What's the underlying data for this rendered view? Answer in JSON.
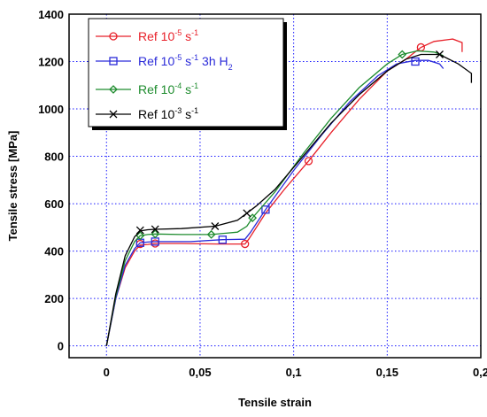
{
  "chart_data": {
    "type": "line",
    "xlabel": "Tensile strain",
    "ylabel": "Tensile stress [MPa]",
    "xlim": [
      -0.02,
      0.2
    ],
    "ylim": [
      -50,
      1400
    ],
    "xticks": [
      0,
      0.05,
      0.1,
      0.15,
      0.2
    ],
    "xtick_labels": [
      "0",
      "0,05",
      "0,1",
      "0,15",
      "0,2"
    ],
    "yticks": [
      0,
      200,
      400,
      600,
      800,
      1000,
      1200,
      1400
    ],
    "ytick_labels": [
      "0",
      "200",
      "400",
      "600",
      "800",
      "1000",
      "1200",
      "1400"
    ],
    "grid": true,
    "legend_position": "top-left",
    "series": [
      {
        "legend_parts": [
          "Ref 10",
          "-5",
          " s",
          "-1",
          "",
          ""
        ],
        "color": "#e8212a",
        "marker": "circle",
        "points": [
          [
            0,
            0
          ],
          [
            0.005,
            200
          ],
          [
            0.01,
            330
          ],
          [
            0.015,
            400
          ],
          [
            0.018,
            425
          ],
          [
            0.022,
            428
          ],
          [
            0.026,
            432
          ],
          [
            0.04,
            432
          ],
          [
            0.06,
            430
          ],
          [
            0.074,
            430
          ],
          [
            0.076,
            450
          ],
          [
            0.085,
            560
          ],
          [
            0.095,
            660
          ],
          [
            0.108,
            780
          ],
          [
            0.12,
            900
          ],
          [
            0.135,
            1040
          ],
          [
            0.15,
            1160
          ],
          [
            0.16,
            1210
          ],
          [
            0.168,
            1260
          ],
          [
            0.175,
            1285
          ],
          [
            0.185,
            1295
          ],
          [
            0.19,
            1280
          ],
          [
            0.19,
            1240
          ]
        ],
        "markers_at": [
          [
            0.018,
            430
          ],
          [
            0.026,
            432
          ],
          [
            0.074,
            430
          ],
          [
            0.108,
            780
          ],
          [
            0.168,
            1260
          ]
        ]
      },
      {
        "legend_parts": [
          "Ref 10",
          "-5",
          " s",
          "-1",
          " 3h H",
          "2"
        ],
        "color": "#2b2bd9",
        "marker": "square",
        "points": [
          [
            0,
            0
          ],
          [
            0.005,
            200
          ],
          [
            0.01,
            340
          ],
          [
            0.015,
            410
          ],
          [
            0.018,
            435
          ],
          [
            0.022,
            438
          ],
          [
            0.026,
            440
          ],
          [
            0.045,
            440
          ],
          [
            0.062,
            448
          ],
          [
            0.074,
            450
          ],
          [
            0.077,
            480
          ],
          [
            0.085,
            575
          ],
          [
            0.1,
            740
          ],
          [
            0.115,
            890
          ],
          [
            0.13,
            1030
          ],
          [
            0.145,
            1140
          ],
          [
            0.155,
            1190
          ],
          [
            0.165,
            1205
          ],
          [
            0.172,
            1205
          ],
          [
            0.178,
            1190
          ],
          [
            0.18,
            1170
          ]
        ],
        "markers_at": [
          [
            0.018,
            435
          ],
          [
            0.026,
            440
          ],
          [
            0.062,
            448
          ],
          [
            0.085,
            575
          ],
          [
            0.165,
            1200
          ]
        ]
      },
      {
        "legend_parts": [
          "Ref 10",
          "-4",
          " s",
          "-1",
          "",
          ""
        ],
        "color": "#1e8c2e",
        "marker": "diamond",
        "points": [
          [
            0,
            0
          ],
          [
            0.005,
            210
          ],
          [
            0.01,
            360
          ],
          [
            0.015,
            440
          ],
          [
            0.018,
            465
          ],
          [
            0.022,
            470
          ],
          [
            0.026,
            472
          ],
          [
            0.04,
            470
          ],
          [
            0.056,
            470
          ],
          [
            0.07,
            480
          ],
          [
            0.075,
            505
          ],
          [
            0.078,
            540
          ],
          [
            0.09,
            650
          ],
          [
            0.105,
            810
          ],
          [
            0.12,
            960
          ],
          [
            0.135,
            1090
          ],
          [
            0.15,
            1190
          ],
          [
            0.158,
            1230
          ],
          [
            0.166,
            1245
          ],
          [
            0.175,
            1240
          ],
          [
            0.18,
            1225
          ]
        ],
        "markers_at": [
          [
            0.018,
            465
          ],
          [
            0.026,
            472
          ],
          [
            0.056,
            470
          ],
          [
            0.078,
            540
          ],
          [
            0.158,
            1230
          ]
        ]
      },
      {
        "legend_parts": [
          "Ref 10",
          "-3",
          " s",
          "-1",
          "",
          ""
        ],
        "color": "#000000",
        "marker": "x",
        "points": [
          [
            0,
            0
          ],
          [
            0.005,
            220
          ],
          [
            0.01,
            380
          ],
          [
            0.015,
            460
          ],
          [
            0.018,
            485
          ],
          [
            0.022,
            490
          ],
          [
            0.026,
            492
          ],
          [
            0.04,
            495
          ],
          [
            0.058,
            505
          ],
          [
            0.07,
            530
          ],
          [
            0.075,
            560
          ],
          [
            0.08,
            590
          ],
          [
            0.09,
            660
          ],
          [
            0.105,
            800
          ],
          [
            0.12,
            940
          ],
          [
            0.135,
            1060
          ],
          [
            0.15,
            1160
          ],
          [
            0.16,
            1210
          ],
          [
            0.168,
            1230
          ],
          [
            0.178,
            1230
          ],
          [
            0.188,
            1190
          ],
          [
            0.195,
            1150
          ],
          [
            0.195,
            1110
          ]
        ],
        "markers_at": [
          [
            0.018,
            488
          ],
          [
            0.026,
            492
          ],
          [
            0.058,
            505
          ],
          [
            0.075,
            560
          ],
          [
            0.178,
            1230
          ]
        ]
      }
    ]
  }
}
